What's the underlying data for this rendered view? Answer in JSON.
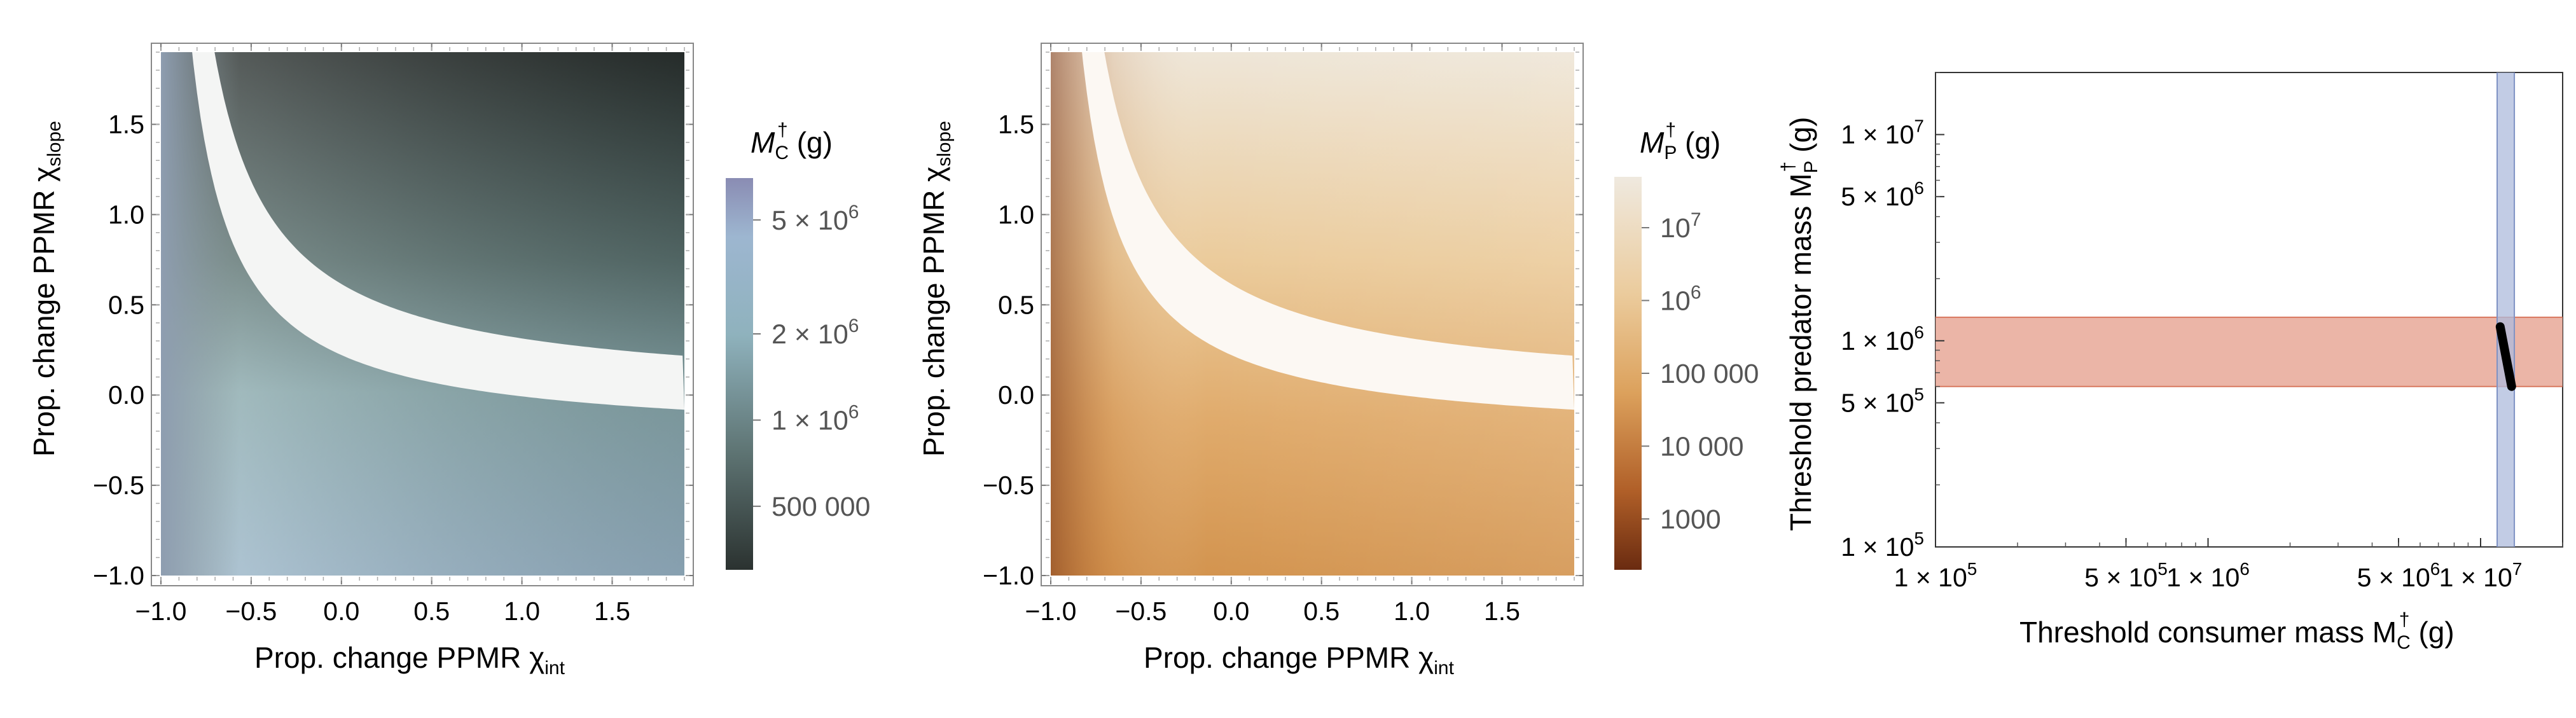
{
  "chart_data": [
    {
      "type": "heatmap",
      "panel": "left",
      "xlabel": "Prop. change PPMR χ",
      "xlabel_sub": "int",
      "ylabel": "Prop. change PPMR χ",
      "ylabel_sub": "slope",
      "xlim": [
        -1.0,
        1.9
      ],
      "ylim": [
        -1.0,
        1.9
      ],
      "xticks": [
        "−1.0",
        "−0.5",
        "0.0",
        "0.5",
        "1.0",
        "1.5"
      ],
      "xtick_values": [
        -1.0,
        -0.5,
        0.0,
        0.5,
        1.0,
        1.5
      ],
      "yticks": [
        "−1.0",
        "−0.5",
        "0.0",
        "0.5",
        "1.0",
        "1.5"
      ],
      "ytick_values": [
        -1.0,
        -0.5,
        0.0,
        0.5,
        1.0,
        1.5
      ],
      "colorbar_title": "M",
      "colorbar_title_sub": "C",
      "colorbar_title_sup": "†",
      "colorbar_unit": "(g)",
      "colorbar_ticks": [
        {
          "label": "5 × 10",
          "sup": "6",
          "value": 5000000
        },
        {
          "label": "2 × 10",
          "sup": "6",
          "value": 2000000
        },
        {
          "label": "1 × 10",
          "sup": "6",
          "value": 1000000
        },
        {
          "label": "500 000",
          "sup": "",
          "value": 500000
        }
      ],
      "colorbar_range": [
        300000,
        7000000
      ],
      "colorbar_log": true,
      "colormap": [
        "#2b3230",
        "#5a6e6b",
        "#8eb0b8",
        "#9fb8d0",
        "#8c8fb4"
      ],
      "gap_band": {
        "description": "white band where threshold undefined",
        "color": "#f4f5f4"
      }
    },
    {
      "type": "heatmap",
      "panel": "middle",
      "xlabel": "Prop. change PPMR χ",
      "xlabel_sub": "int",
      "ylabel": "Prop. change PPMR χ",
      "ylabel_sub": "slope",
      "xlim": [
        -1.0,
        1.9
      ],
      "ylim": [
        -1.0,
        1.9
      ],
      "xticks": [
        "−1.0",
        "−0.5",
        "0.0",
        "0.5",
        "1.0",
        "1.5"
      ],
      "xtick_values": [
        -1.0,
        -0.5,
        0.0,
        0.5,
        1.0,
        1.5
      ],
      "yticks": [
        "−1.0",
        "−0.5",
        "0.0",
        "0.5",
        "1.0",
        "1.5"
      ],
      "ytick_values": [
        -1.0,
        -0.5,
        0.0,
        0.5,
        1.0,
        1.5
      ],
      "colorbar_title": "M",
      "colorbar_title_sub": "P",
      "colorbar_title_sup": "†",
      "colorbar_unit": "(g)",
      "colorbar_ticks": [
        {
          "label": "10",
          "sup": "7",
          "value": 10000000
        },
        {
          "label": "10",
          "sup": "6",
          "value": 1000000
        },
        {
          "label": "100 000",
          "sup": "",
          "value": 100000
        },
        {
          "label": "10 000",
          "sup": "",
          "value": 10000
        },
        {
          "label": "1000",
          "sup": "",
          "value": 1000
        }
      ],
      "colorbar_range": [
        200,
        50000000
      ],
      "colorbar_log": true,
      "colormap": [
        "#6e2e12",
        "#b5662c",
        "#e0a866",
        "#edd3a8",
        "#eee8dc"
      ],
      "gap_band": {
        "description": "white band where threshold undefined",
        "color": "#fbf6f0"
      }
    },
    {
      "type": "line",
      "panel": "right",
      "xlabel": "Threshold consumer mass M",
      "xlabel_sub": "C",
      "xlabel_sup": "†",
      "xlabel_unit": "(g)",
      "ylabel": "Threshold predator mass M",
      "ylabel_sub": "P",
      "ylabel_sup": "†",
      "ylabel_unit": "(g)",
      "xlim": [
        100000,
        20000000
      ],
      "ylim": [
        100000,
        20000000
      ],
      "xscale": "log",
      "yscale": "log",
      "xticks": [
        {
          "label": "1 × 10",
          "sup": "5",
          "value": 100000
        },
        {
          "label": "5 × 10",
          "sup": "5",
          "value": 500000
        },
        {
          "label": "1 × 10",
          "sup": "6",
          "value": 1000000
        },
        {
          "label": "5 × 10",
          "sup": "6",
          "value": 5000000
        },
        {
          "label": "1 × 10",
          "sup": "7",
          "value": 10000000
        }
      ],
      "yticks": [
        {
          "label": "1 × 10",
          "sup": "5",
          "value": 100000
        },
        {
          "label": "5 × 10",
          "sup": "5",
          "value": 500000
        },
        {
          "label": "1 × 10",
          "sup": "6",
          "value": 1000000
        },
        {
          "label": "5 × 10",
          "sup": "6",
          "value": 5000000
        },
        {
          "label": "1 × 10",
          "sup": "7",
          "value": 10000000
        }
      ],
      "bands": [
        {
          "orientation": "horizontal",
          "from": 600000,
          "to": 1300000,
          "color": "#e8a898",
          "edge": "#d9785f"
        },
        {
          "orientation": "vertical",
          "from": 11500000,
          "to": 13300000,
          "color": "#aebbdc",
          "edge": "#7f92c4"
        }
      ],
      "series": [
        {
          "x": [
            11800000,
            13000000
          ],
          "y": [
            1170000,
            600000
          ],
          "color": "#000000"
        }
      ]
    }
  ]
}
